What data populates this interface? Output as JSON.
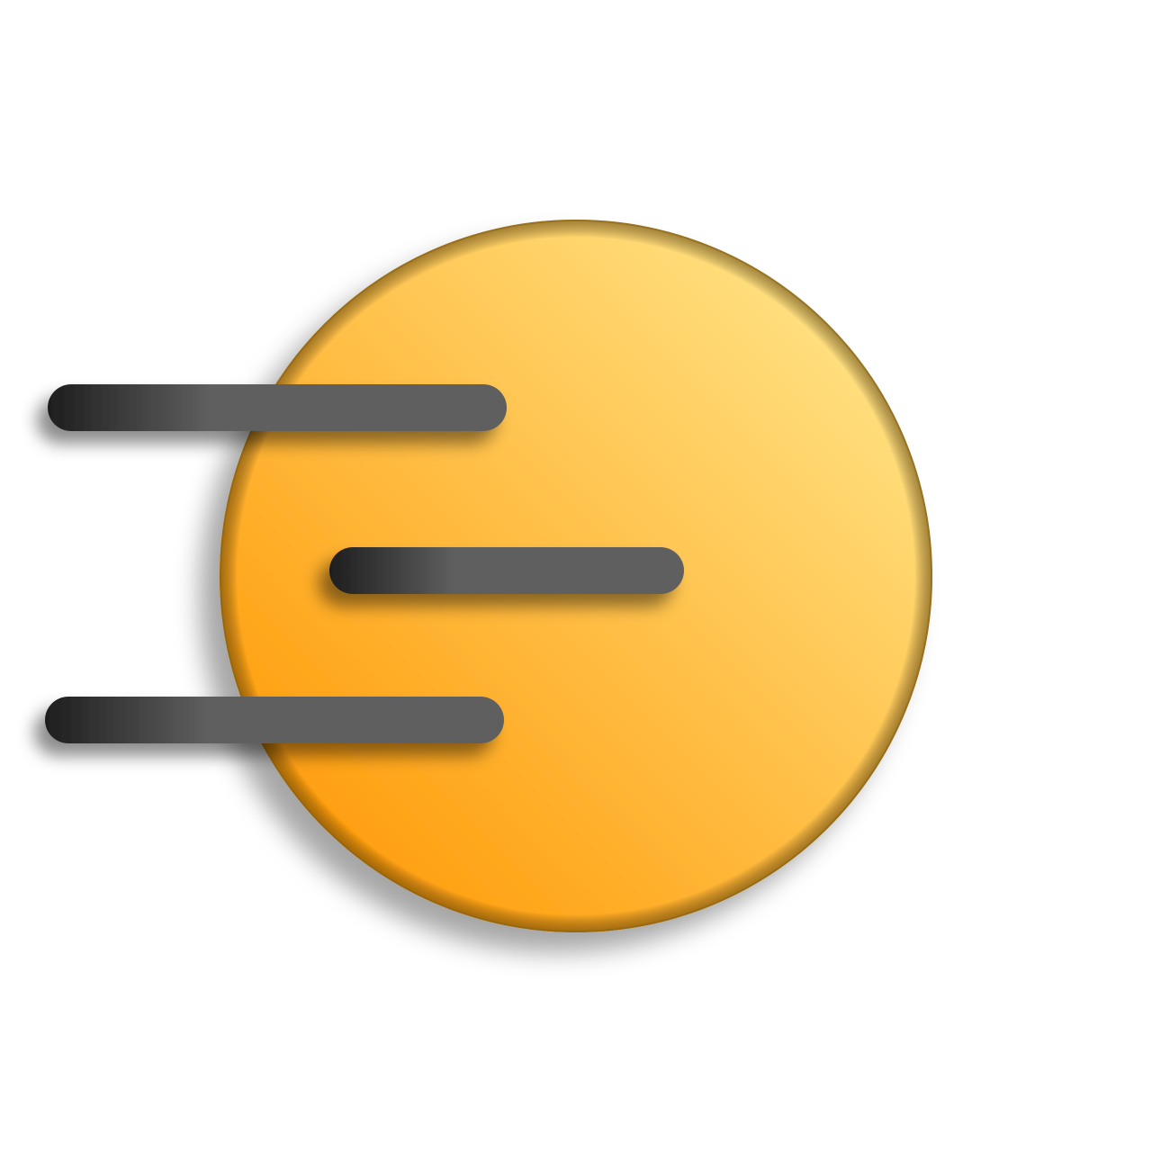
{
  "logo": {
    "icon": "speed-menu-icon",
    "colors": {
      "background": "#ffffff",
      "disc_light": "#FFDF7E",
      "disc_dark": "#FF9F0F",
      "disc_edge": "#8A6210",
      "bar_dark": "#1E1E1E",
      "bar_light": "#5E5E5E"
    }
  }
}
